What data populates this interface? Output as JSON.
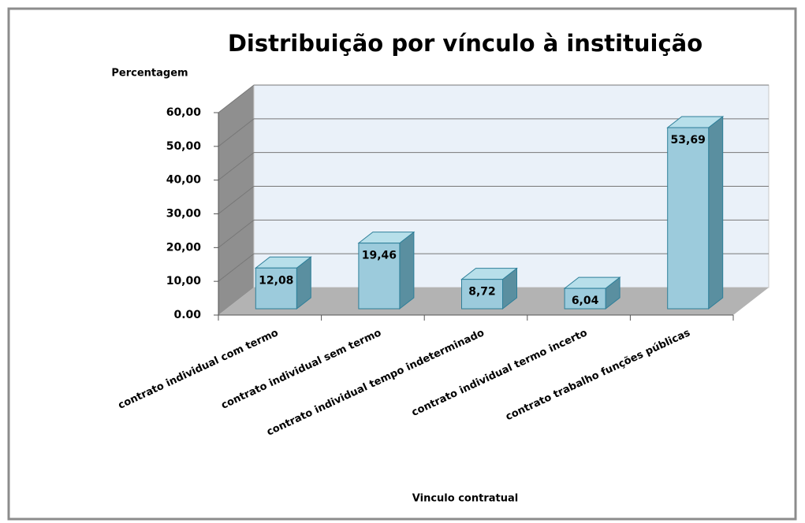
{
  "chart_data": {
    "type": "bar3d",
    "title": "Distribuição por vínculo à instituição",
    "y_label": "Percentagem",
    "x_label": "Vinculo contratual",
    "categories": [
      "contrato individual  com termo",
      "contrato individual  sem termo",
      "contrato individual  tempo indeterminado",
      "contrato individual  termo incerto",
      "contrato trabalho funções públicas"
    ],
    "values": [
      12.08,
      19.46,
      8.72,
      6.04,
      53.69
    ],
    "value_labels": [
      "12,08",
      "19,46",
      "8,72",
      "6,04",
      "53,69"
    ],
    "color": "#9ccbdc",
    "ylim": [
      0,
      60
    ],
    "yticks": [
      {
        "value": 0,
        "label": "0.00"
      },
      {
        "value": 10,
        "label": "10,00"
      },
      {
        "value": 20,
        "label": "20,00"
      },
      {
        "value": 30,
        "label": "30,00"
      },
      {
        "value": 40,
        "label": "40,00"
      },
      {
        "value": 50,
        "label": "50,00"
      },
      {
        "value": 60,
        "label": "60,00"
      }
    ],
    "grid": true
  }
}
